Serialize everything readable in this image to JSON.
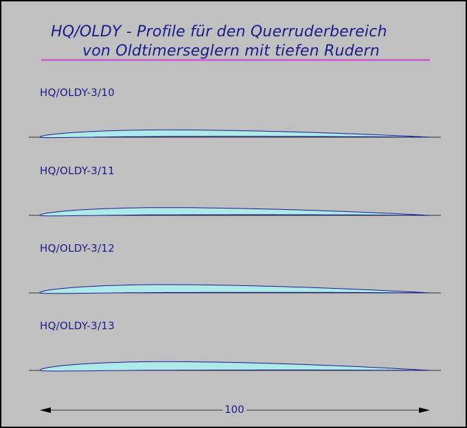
{
  "title": {
    "line1": "HQ/OLDY - Profile für den Querruderbereich",
    "line2": "von Oldtimerseglern mit tiefen Rudern"
  },
  "colors": {
    "background": "#c0c0c0",
    "text": "#1a1a8c",
    "underline": "#cc66cc",
    "profile_fill": "#aeeaea",
    "profile_outline": "#1a1a8c",
    "chord_line": "#000000"
  },
  "profiles": [
    {
      "name": "HQ/OLDY-3/10",
      "thickness_percent": 10
    },
    {
      "name": "HQ/OLDY-3/11",
      "thickness_percent": 11
    },
    {
      "name": "HQ/OLDY-3/12",
      "thickness_percent": 12
    },
    {
      "name": "HQ/OLDY-3/13",
      "thickness_percent": 13
    }
  ],
  "dimension": {
    "label": "100",
    "chord_units": 100
  }
}
